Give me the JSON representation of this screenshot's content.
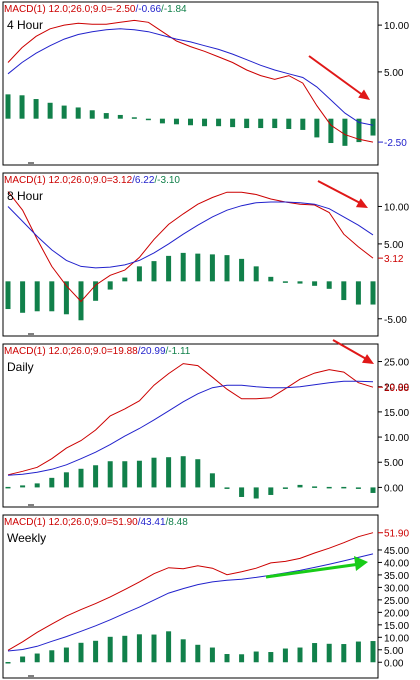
{
  "colors": {
    "fast_line": "#cc0000",
    "signal_line": "#2222cc",
    "histogram": "#11804a",
    "arrow_down": "#e01818",
    "arrow_up": "#18cc18",
    "axis_text": "#000000",
    "frame": "#000000"
  },
  "chart_data": [
    {
      "type": "line",
      "panel_label": "4 Hour",
      "header": {
        "prefix": "MACD(1) 12.0;26.0;9.0=",
        "macd": "-2.50",
        "signal": "-0.66",
        "hist": "-1.84"
      },
      "y_ticks": [
        "10.00",
        "5.00"
      ],
      "y_tick_values": [
        10,
        5
      ],
      "ylim": [
        -4.2,
        11.4
      ],
      "last_value_label": "-2.50",
      "last_value_color": "blue",
      "annotation_arrow": "down",
      "series": [
        {
          "role": "macd",
          "values": [
            6.0,
            7.6,
            8.8,
            9.6,
            10.0,
            10.2,
            10.1,
            10.1,
            10.3,
            10.5,
            10.3,
            9.3,
            8.3,
            7.7,
            7.2,
            6.6,
            6.0,
            5.2,
            4.6,
            4.2,
            4.6,
            3.8,
            1.4,
            -0.7,
            -1.7,
            -2.2,
            -2.5
          ]
        },
        {
          "role": "signal",
          "values": [
            4.8,
            6.0,
            7.0,
            7.8,
            8.5,
            9.0,
            9.3,
            9.5,
            9.6,
            9.5,
            9.3,
            8.9,
            8.5,
            8.2,
            7.8,
            7.4,
            6.9,
            6.3,
            5.7,
            5.2,
            4.8,
            4.4,
            3.4,
            2.0,
            0.6,
            -0.4,
            -0.7
          ]
        },
        {
          "role": "histogram",
          "values": [
            2.6,
            2.5,
            2.1,
            1.7,
            1.4,
            1.2,
            0.9,
            0.6,
            0.4,
            0.15,
            0.0,
            -0.5,
            -0.6,
            -0.7,
            -0.8,
            -0.8,
            -0.9,
            -1.0,
            -1.0,
            -1.0,
            -1.1,
            -1.2,
            -2.0,
            -2.6,
            -2.9,
            -2.5,
            -1.8
          ]
        }
      ]
    },
    {
      "type": "line",
      "panel_label": "8 Hour",
      "header": {
        "prefix": "MACD(1) 12.0;26.0;9.0=",
        "macd": "3.12",
        "signal": "6.22",
        "hist": "-3.10"
      },
      "y_ticks": [
        "10.00",
        "5.00",
        "-5.00"
      ],
      "y_tick_values": [
        10,
        5,
        -5
      ],
      "ylim": [
        -6.5,
        13.0
      ],
      "last_value_label": "3.12",
      "last_value_color": "red",
      "annotation_arrow": "down",
      "series": [
        {
          "role": "macd",
          "values": [
            12.0,
            9.5,
            5.6,
            2.0,
            -0.6,
            -2.7,
            -0.5,
            0.8,
            1.5,
            3.2,
            5.6,
            7.6,
            9.0,
            10.3,
            11.2,
            11.9,
            11.9,
            11.6,
            11.0,
            10.6,
            10.3,
            10.2,
            9.2,
            6.3,
            4.6,
            3.1
          ]
        },
        {
          "role": "signal",
          "values": [
            10.0,
            8.0,
            6.0,
            4.2,
            2.8,
            2.0,
            1.8,
            1.9,
            2.2,
            2.8,
            3.8,
            5.0,
            6.3,
            7.5,
            8.6,
            9.5,
            10.1,
            10.5,
            10.6,
            10.6,
            10.5,
            10.3,
            9.7,
            8.6,
            7.5,
            6.2
          ]
        },
        {
          "role": "histogram",
          "values": [
            -3.7,
            -4.2,
            -4.0,
            -4.0,
            -4.4,
            -5.2,
            -2.6,
            -1.1,
            0.5,
            2.0,
            2.7,
            3.4,
            3.8,
            3.7,
            3.6,
            3.5,
            3.0,
            2.0,
            0.6,
            0.0,
            -0.3,
            -0.6,
            -1.0,
            -2.5,
            -3.1,
            -3.1
          ]
        }
      ]
    },
    {
      "type": "line",
      "panel_label": "Daily",
      "header": {
        "prefix": "MACD(1) 12.0;26.0;9.0=",
        "macd": "19.88",
        "signal": "20.99",
        "hist": "-1.11"
      },
      "y_ticks": [
        "25.00",
        "20.00",
        "15.00",
        "10.00",
        "5.00",
        "0.00"
      ],
      "y_tick_values": [
        25,
        20,
        15,
        10,
        5,
        0
      ],
      "ylim": [
        -2.5,
        26.3
      ],
      "last_value_label": "19.88",
      "last_value_color": "red",
      "annotation_arrow": "down",
      "series": [
        {
          "role": "macd",
          "values": [
            2.5,
            3.2,
            4.0,
            5.7,
            7.8,
            9.3,
            11.4,
            14.2,
            15.6,
            17.2,
            20.3,
            22.6,
            24.6,
            24.2,
            21.9,
            19.5,
            17.6,
            17.6,
            17.8,
            19.6,
            21.5,
            22.7,
            23.4,
            22.9,
            20.8,
            19.9
          ]
        },
        {
          "role": "signal",
          "values": [
            2.4,
            2.6,
            3.0,
            3.6,
            4.5,
            5.7,
            7.0,
            8.5,
            10.2,
            11.7,
            13.4,
            15.2,
            17.0,
            18.6,
            19.8,
            20.3,
            20.3,
            20.0,
            19.8,
            19.8,
            20.0,
            20.4,
            20.8,
            21.1,
            21.1,
            21.0
          ]
        },
        {
          "role": "histogram",
          "values": [
            0.1,
            0.4,
            0.8,
            1.9,
            3.0,
            3.7,
            4.4,
            5.2,
            5.2,
            5.3,
            5.9,
            6.0,
            6.2,
            5.6,
            2.8,
            0.0,
            -1.9,
            -2.2,
            -1.5,
            0.0,
            0.5,
            0.2,
            0.1,
            0.1,
            -0.1,
            -1.1
          ]
        }
      ]
    },
    {
      "type": "line",
      "panel_label": "Weekly",
      "header": {
        "prefix": "MACD(1) 12.0;26.0;9.0=",
        "macd": "51.90",
        "signal": "43.41",
        "hist": "8.48"
      },
      "y_ticks": [
        "51.90",
        "45.00",
        "40.00",
        "35.00",
        "30.00",
        "25.00",
        "20.00",
        "15.00",
        "10.00",
        "5.00",
        "0.00"
      ],
      "y_tick_values": [
        51.9,
        45,
        40,
        35,
        30,
        25,
        20,
        15,
        10,
        5,
        0
      ],
      "ylim": [
        -2.3,
        55.0
      ],
      "last_value_label": "51.90",
      "last_value_color": "red",
      "annotation_arrow": "up",
      "series": [
        {
          "role": "macd",
          "values": [
            4.8,
            8.2,
            12.0,
            15.3,
            18.5,
            21.1,
            23.5,
            26.2,
            29.1,
            32.2,
            35.5,
            37.9,
            37.5,
            38.7,
            37.7,
            35.1,
            36.3,
            37.7,
            39.8,
            40.4,
            41.6,
            43.8,
            45.7,
            47.9,
            50.3,
            51.9
          ]
        },
        {
          "role": "signal",
          "values": [
            4.5,
            5.1,
            6.4,
            8.4,
            10.3,
            12.4,
            14.6,
            17.0,
            19.6,
            22.1,
            24.9,
            27.7,
            29.5,
            31.1,
            32.2,
            32.9,
            33.3,
            34.0,
            34.9,
            35.8,
            36.8,
            38.0,
            39.3,
            40.6,
            42.0,
            43.4
          ]
        },
        {
          "role": "histogram",
          "values": [
            0.1,
            2.3,
            3.5,
            4.8,
            5.9,
            7.8,
            8.6,
            10.2,
            10.6,
            11.2,
            11.1,
            12.4,
            9.2,
            7.0,
            5.9,
            3.3,
            3.2,
            4.3,
            4.1,
            5.5,
            5.9,
            7.7,
            7.4,
            7.3,
            8.3,
            8.5
          ]
        }
      ]
    }
  ]
}
